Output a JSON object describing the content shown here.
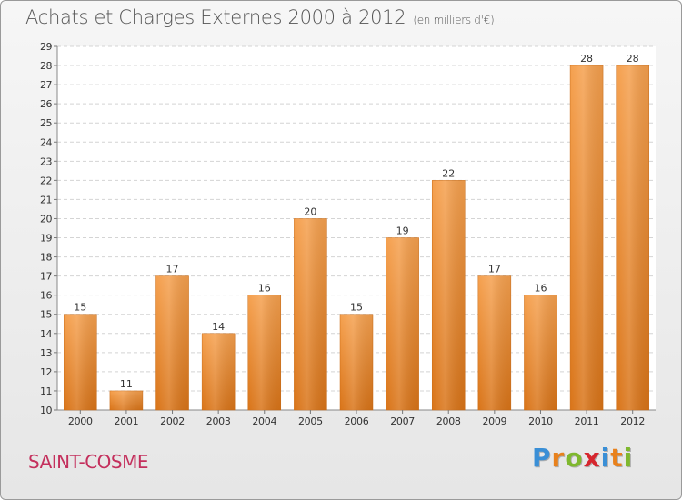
{
  "header": {
    "title": "Achats et Charges Externes 2000 à 2012",
    "subtitle": "(en milliers d'€)"
  },
  "footer": {
    "commune": "SAINT-COSME",
    "logo_letters": [
      "P",
      "r",
      "o",
      "x",
      "i",
      "t",
      "i"
    ],
    "logo_colors": [
      "#3a8fd6",
      "#e8811c",
      "#7fb82e",
      "#d6262e",
      "#3a8fd6",
      "#e8811c",
      "#7fb82e"
    ]
  },
  "chart_data": {
    "type": "bar",
    "categories": [
      "2000",
      "2001",
      "2002",
      "2003",
      "2004",
      "2005",
      "2006",
      "2007",
      "2008",
      "2009",
      "2010",
      "2011",
      "2012"
    ],
    "values": [
      15,
      11,
      17,
      14,
      16,
      20,
      15,
      19,
      22,
      17,
      16,
      28,
      28
    ],
    "title": "Achats et Charges Externes 2000 à 2012",
    "subtitle": "(en milliers d'€)",
    "ylim": [
      10,
      29
    ],
    "yticks": [
      10,
      11,
      12,
      13,
      14,
      15,
      16,
      17,
      18,
      19,
      20,
      21,
      22,
      23,
      24,
      25,
      26,
      27,
      28,
      29
    ],
    "grid": true,
    "bar_color": "#f5a04e",
    "bar_color_dark": "#d97418"
  }
}
